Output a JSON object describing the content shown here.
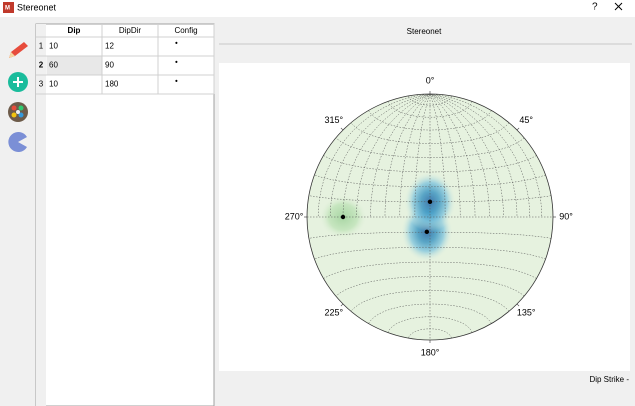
{
  "window": {
    "title": "Stereonet",
    "help": "?"
  },
  "table": {
    "columns": [
      "Dip",
      "DipDir",
      "Config"
    ],
    "rows": [
      {
        "index": 1,
        "dip": 10,
        "dipdir": 12,
        "config": "•"
      },
      {
        "index": 2,
        "dip": 60,
        "dipdir": 90,
        "config": "•"
      },
      {
        "index": 3,
        "dip": 10,
        "dipdir": 180,
        "config": "•"
      }
    ]
  },
  "panel": {
    "title": "Stereonet"
  },
  "stereonet": {
    "directions": [
      {
        "value": 0,
        "label": "0°"
      },
      {
        "value": 45,
        "label": "45°"
      },
      {
        "value": 90,
        "label": "90°"
      },
      {
        "value": 135,
        "label": "135°"
      },
      {
        "value": 180,
        "label": "180°"
      },
      {
        "value": 225,
        "label": "225°"
      },
      {
        "value": 270,
        "label": "270°"
      },
      {
        "value": 315,
        "label": "315°"
      }
    ]
  },
  "status": "Dip Strike -"
}
